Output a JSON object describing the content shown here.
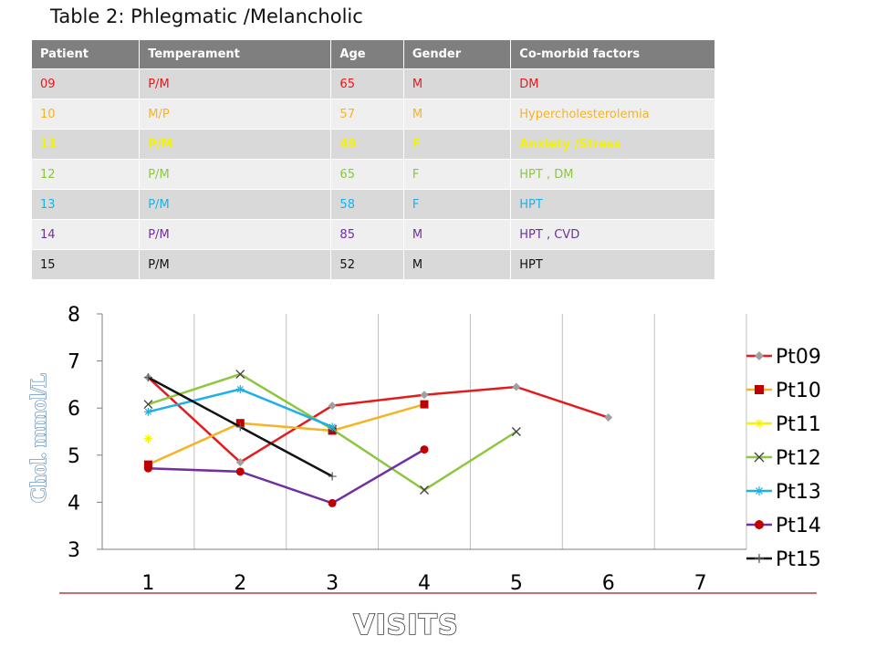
{
  "slide_title": "Table 2: Phlegmatic /Melancholic",
  "table": {
    "headers": [
      "Patient",
      "Temperament",
      "Age",
      "Gender",
      "Co-morbid factors"
    ],
    "rows": [
      {
        "cells": [
          "09",
          "P/M",
          "65",
          "M",
          "DM"
        ],
        "color": "#e41a1c"
      },
      {
        "cells": [
          "10",
          "M/P",
          "57",
          "M",
          "Hypercholesterolemia"
        ],
        "color": "#f5b325"
      },
      {
        "cells": [
          "11",
          "P/M",
          "49",
          "F",
          "Anxiety /Stress"
        ],
        "color": "#f3f300"
      },
      {
        "cells": [
          "12",
          "P/M",
          "65",
          "F",
          "HPT , DM"
        ],
        "color": "#8dc63f"
      },
      {
        "cells": [
          "13",
          "P/M",
          "58",
          "F",
          "HPT"
        ],
        "color": "#1fb0e6"
      },
      {
        "cells": [
          "14",
          "P/M",
          "85",
          "M",
          "HPT , CVD"
        ],
        "color": "#7030a0"
      },
      {
        "cells": [
          "15",
          "P/M",
          "52",
          "M",
          "HPT"
        ],
        "color": "#111111"
      }
    ]
  },
  "chart_data": {
    "type": "line",
    "ylabel": "Chol. mmol/L",
    "xlabel": "VISITS",
    "x_categories": [
      "1",
      "2",
      "3",
      "4",
      "5",
      "6",
      "7"
    ],
    "ylim": [
      3,
      8
    ],
    "yticks": [
      "3",
      "4",
      "5",
      "6",
      "7",
      "8"
    ],
    "grid": "vertical",
    "legend": "right",
    "series": [
      {
        "name": "Pt09",
        "color": "#e41a1c",
        "marker": "diamond",
        "marker_color": "#a0a0a0",
        "values": [
          6.65,
          4.85,
          6.05,
          6.28,
          6.45,
          5.8,
          null
        ]
      },
      {
        "name": "Pt10",
        "color": "#f5b325",
        "marker": "square",
        "marker_color": "#c00000",
        "values": [
          4.8,
          5.68,
          5.52,
          6.08,
          null,
          null,
          null
        ]
      },
      {
        "name": "Pt11",
        "color": "#f3f300",
        "marker": "star",
        "marker_color": "#f3f300",
        "values": [
          5.35,
          null,
          null,
          null,
          null,
          null,
          null
        ]
      },
      {
        "name": "Pt12",
        "color": "#8dc63f",
        "marker": "x",
        "marker_color": "#404040",
        "values": [
          6.08,
          6.72,
          5.55,
          4.26,
          5.5,
          null,
          null
        ]
      },
      {
        "name": "Pt13",
        "color": "#1fb0e6",
        "marker": "star",
        "marker_color": "#1fb0e6",
        "values": [
          5.92,
          6.4,
          5.6,
          null,
          null,
          null,
          null
        ]
      },
      {
        "name": "Pt14",
        "color": "#7030a0",
        "marker": "circle",
        "marker_color": "#c00000",
        "values": [
          4.72,
          4.65,
          3.98,
          5.12,
          null,
          null,
          null
        ]
      },
      {
        "name": "Pt15",
        "color": "#111111",
        "marker": "plus",
        "marker_color": "#606060",
        "values": [
          6.65,
          5.6,
          4.55,
          null,
          null,
          null,
          null
        ]
      }
    ]
  }
}
